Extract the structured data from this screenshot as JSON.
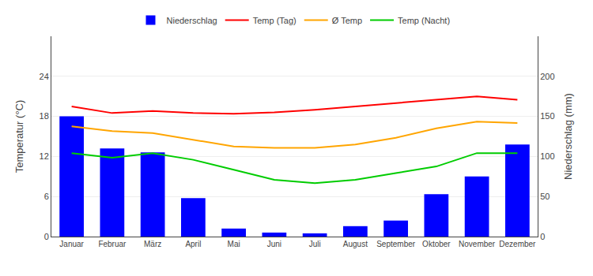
{
  "chart_data": {
    "type": "combo",
    "categories": [
      "Januar",
      "Februar",
      "März",
      "April",
      "Mai",
      "Juni",
      "Juli",
      "August",
      "September",
      "Oktober",
      "November",
      "Dezember"
    ],
    "series": [
      {
        "name": "Niederschlag",
        "type": "bar",
        "axis": "y2",
        "color": "#0000ff",
        "values": [
          150,
          110,
          105,
          48,
          10,
          5,
          4,
          13,
          20,
          53,
          75,
          115
        ]
      },
      {
        "name": "Temp (Tag)",
        "type": "line",
        "color": "#ff0000",
        "values": [
          19.5,
          18.5,
          18.8,
          18.5,
          18.4,
          18.6,
          19.0,
          19.5,
          20.0,
          20.5,
          21.0,
          20.5
        ]
      },
      {
        "name": "Ø Temp",
        "type": "line",
        "color": "#ffa500",
        "values": [
          16.5,
          15.8,
          15.5,
          14.5,
          13.5,
          13.3,
          13.3,
          13.8,
          14.8,
          16.2,
          17.2,
          17.0
        ]
      },
      {
        "name": "Temp (Nacht)",
        "type": "line",
        "color": "#00cc00",
        "values": [
          12.5,
          11.8,
          12.5,
          11.5,
          10.0,
          8.5,
          8.0,
          8.5,
          9.5,
          10.5,
          12.5,
          12.5
        ]
      }
    ],
    "ylabel": "Temperatur (°C)",
    "y2label": "Niederschlag (mm)",
    "ylim": [
      0,
      30
    ],
    "yticks": [
      0,
      6,
      12,
      18,
      24
    ],
    "y2lim": [
      0,
      250
    ],
    "y2ticks": [
      0,
      50,
      100,
      150,
      200
    ],
    "grid": true,
    "legend": "top"
  }
}
